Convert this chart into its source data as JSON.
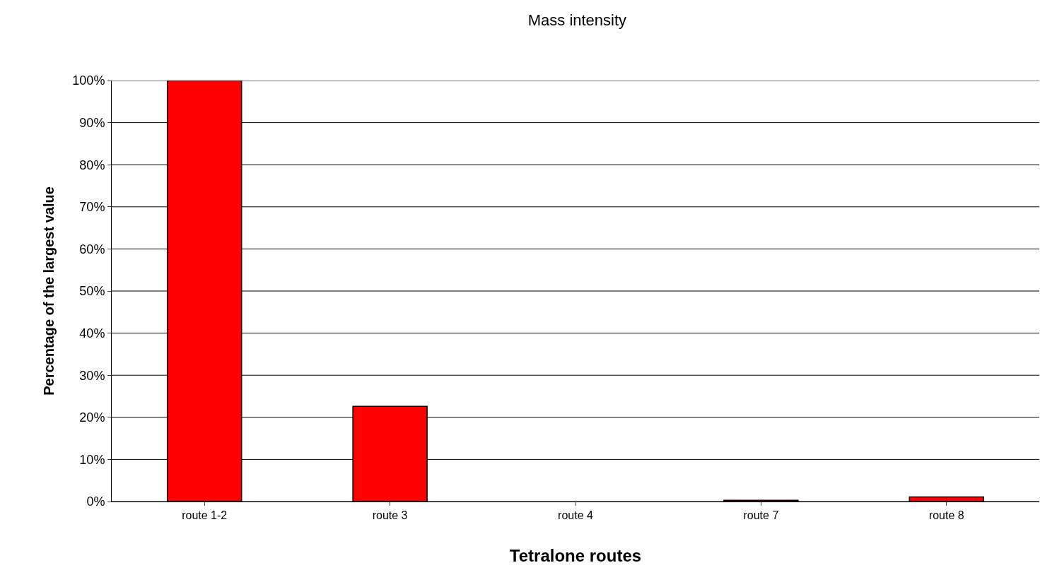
{
  "chart_data": {
    "type": "bar",
    "title": "Mass intensity",
    "xlabel": "Tetralone routes",
    "ylabel": "Percentage of the largest value",
    "categories": [
      "route 1-2",
      "route 3",
      "route 4",
      "route 7",
      "route 8"
    ],
    "values": [
      100,
      22.6,
      null,
      0.3,
      1.1
    ],
    "color": "#ff0000",
    "ylim": [
      0,
      100
    ],
    "yticks": [
      {
        "value": 0,
        "label": "0%"
      },
      {
        "value": 10,
        "label": "10%"
      },
      {
        "value": 20,
        "label": "20%"
      },
      {
        "value": 30,
        "label": "30%"
      },
      {
        "value": 40,
        "label": "40%"
      },
      {
        "value": 50,
        "label": "50%"
      },
      {
        "value": 60,
        "label": "60%"
      },
      {
        "value": 70,
        "label": "70%"
      },
      {
        "value": 80,
        "label": "80%"
      },
      {
        "value": 90,
        "label": "90%"
      },
      {
        "value": 100,
        "label": "100%"
      }
    ],
    "grid": "y",
    "legend": false
  }
}
